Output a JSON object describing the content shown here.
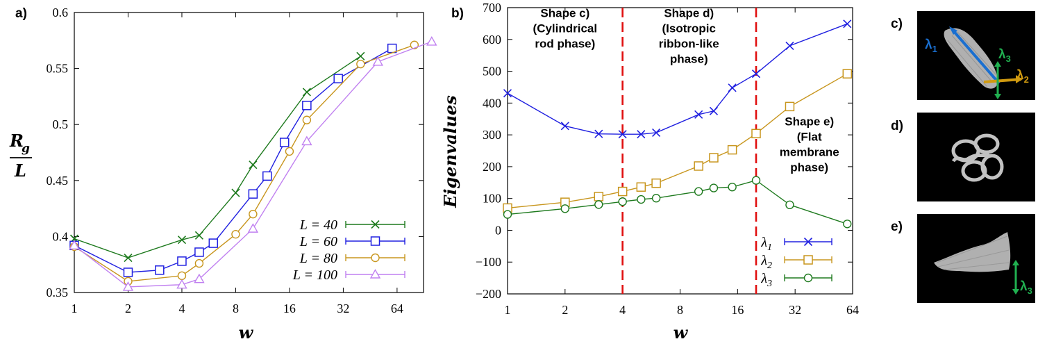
{
  "colors": {
    "L40": "#1e7a1e",
    "L60": "#2020e0",
    "L80": "#c8961e",
    "L100": "#c080f0",
    "lambda1": "#2020e0",
    "lambda2": "#c8961e",
    "lambda3": "#1e7a1e",
    "phase_line": "#e01010",
    "thumb_arrow1": "#1a6fd0",
    "thumb_arrow2": "#d09a10",
    "thumb_arrow3": "#20b050"
  },
  "panel_labels": {
    "a": "a)",
    "b": "b)",
    "c": "c)",
    "d": "d)",
    "e": "e)"
  },
  "chart_data": [
    {
      "type": "line",
      "panel": "a)",
      "xlabel": "w",
      "ylabel_num": "R_g",
      "ylabel_den": "L",
      "xscale": "log2",
      "xlim": [
        1,
        90
      ],
      "ylim": [
        0.35,
        0.6
      ],
      "x_ticks": [
        "1",
        "2",
        "4",
        "8",
        "16",
        "32",
        "64"
      ],
      "y_ticks": [
        "0.35",
        "0.4",
        "0.45",
        "0.5",
        "0.55",
        "0.6"
      ],
      "legend_position": "bottom-right",
      "series": [
        {
          "name": "L = 40",
          "marker": "x",
          "x": [
            1,
            2,
            4,
            5,
            8,
            10,
            20,
            40
          ],
          "y": [
            0.398,
            0.381,
            0.397,
            0.401,
            0.439,
            0.464,
            0.529,
            0.561
          ]
        },
        {
          "name": "L = 60",
          "marker": "square",
          "x": [
            1,
            2,
            3,
            4,
            5,
            6,
            10,
            12,
            15,
            20,
            30,
            60
          ],
          "y": [
            0.392,
            0.368,
            0.37,
            0.378,
            0.386,
            0.394,
            0.438,
            0.454,
            0.484,
            0.517,
            0.541,
            0.568
          ]
        },
        {
          "name": "L = 80",
          "marker": "circle",
          "x": [
            1,
            2,
            4,
            5,
            8,
            10,
            16,
            20,
            40,
            80
          ],
          "y": [
            0.391,
            0.36,
            0.365,
            0.376,
            0.402,
            0.42,
            0.476,
            0.504,
            0.554,
            0.571
          ]
        },
        {
          "name": "L = 100",
          "marker": "triangle",
          "x": [
            1,
            2,
            4,
            5,
            10,
            20,
            50,
            100
          ],
          "y": [
            0.392,
            0.355,
            0.357,
            0.362,
            0.407,
            0.485,
            0.556,
            0.574
          ]
        }
      ]
    },
    {
      "type": "line",
      "panel": "b)",
      "xlabel": "w",
      "ylabel": "Eigenvalues",
      "xscale": "log2",
      "xlim": [
        1,
        64
      ],
      "ylim": [
        -200,
        700
      ],
      "x_ticks": [
        "1",
        "2",
        "4",
        "8",
        "16",
        "32",
        "64"
      ],
      "y_ticks": [
        "700",
        "600",
        "500",
        "400",
        "300",
        "200",
        "100",
        "0",
        "−100",
        "−200"
      ],
      "legend_position": "bottom-right",
      "vlines_x": [
        4,
        20
      ],
      "annotations": [
        {
          "lines": [
            "Shape c)",
            "(Cylindrical",
            "rod phase)"
          ],
          "x": 2.0,
          "y": 670
        },
        {
          "lines": [
            "Shape d)",
            "(Isotropic",
            "ribbon-like",
            "phase)"
          ],
          "x": 8.9,
          "y": 670
        },
        {
          "lines": [
            "Shape e)",
            "(Flat",
            "membrane",
            "phase)"
          ],
          "x": 38,
          "y": 330
        }
      ],
      "series": [
        {
          "name": "λ",
          "sub": "1",
          "marker": "x",
          "x": [
            1,
            2,
            3,
            4,
            5,
            6,
            10,
            12,
            15,
            20,
            30,
            60
          ],
          "y": [
            431,
            328,
            303,
            302,
            302,
            307,
            364,
            375,
            448,
            492,
            580,
            649
          ]
        },
        {
          "name": "λ",
          "sub": "2",
          "marker": "square",
          "x": [
            1,
            2,
            3,
            4,
            5,
            6,
            10,
            12,
            15,
            20,
            30,
            60
          ],
          "y": [
            70,
            88,
            106,
            122,
            136,
            148,
            202,
            228,
            253,
            304,
            389,
            492
          ]
        },
        {
          "name": "λ",
          "sub": "3",
          "marker": "circle",
          "x": [
            1,
            2,
            3,
            4,
            5,
            6,
            10,
            12,
            15,
            20,
            30,
            60
          ],
          "y": [
            50,
            68,
            81,
            90,
            97,
            101,
            122,
            133,
            136,
            157,
            80,
            20
          ]
        }
      ]
    }
  ],
  "thumbnails": {
    "c": {
      "labels": [
        "λ",
        "1",
        "λ",
        "3",
        "λ",
        "2"
      ]
    },
    "e": {
      "labels": [
        "λ",
        "3"
      ]
    }
  }
}
